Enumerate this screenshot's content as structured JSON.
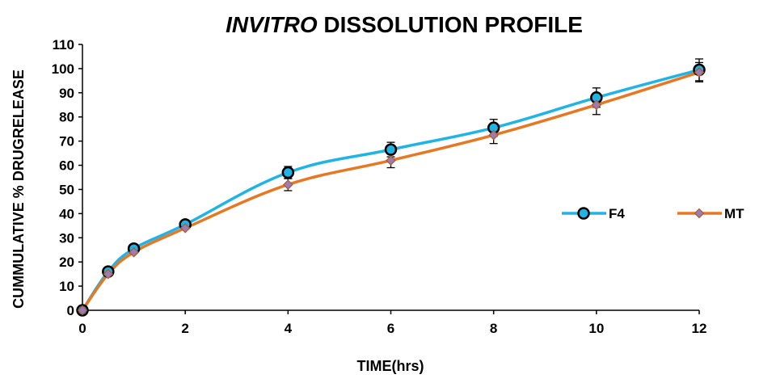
{
  "chart_data": {
    "type": "line",
    "title_italic": "INVITRO",
    "title_rest": " DISSOLUTION PROFILE",
    "xlabel": "TIME(hrs)",
    "ylabel": "CUMMULATIVE % DRUGRELEASE",
    "xlim": [
      0,
      12
    ],
    "ylim": [
      0,
      110
    ],
    "xticks": [
      0,
      2,
      4,
      6,
      8,
      10,
      12
    ],
    "yticks": [
      0,
      10,
      20,
      30,
      40,
      50,
      60,
      70,
      80,
      90,
      100,
      110
    ],
    "grid": false,
    "legend_position": "right",
    "x": [
      0,
      0.5,
      1,
      2,
      4,
      6,
      8,
      10,
      12
    ],
    "series": [
      {
        "name": "F4",
        "values": [
          0,
          16,
          25.5,
          35.5,
          57,
          66.5,
          75.5,
          88,
          99.5
        ],
        "errors": [
          0,
          0,
          0,
          0,
          2.5,
          3,
          3.5,
          4,
          4.5
        ],
        "color": "#1fb4e5",
        "marker": "circle",
        "marker_fill": "#1fb4e5",
        "marker_stroke": "#000000"
      },
      {
        "name": "MT",
        "values": [
          0,
          15,
          24,
          34,
          52,
          62,
          72.5,
          85,
          98.5
        ],
        "errors": [
          0,
          0,
          0,
          0,
          2.5,
          3,
          3.5,
          4,
          4
        ],
        "color": "#e87722",
        "marker": "diamond",
        "marker_fill": "#9b7bb8",
        "marker_stroke": "#b05a2a"
      }
    ]
  }
}
